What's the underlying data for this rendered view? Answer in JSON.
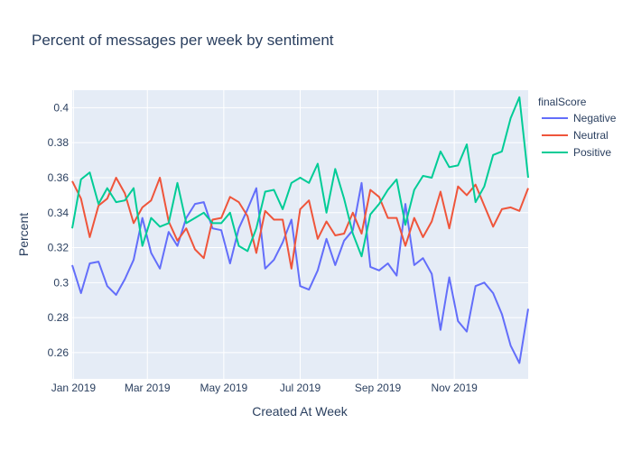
{
  "chart_data": {
    "type": "line",
    "title": "Percent of messages per week by sentiment",
    "xlabel": "Created At Week",
    "ylabel": "Percent",
    "x_ticks": [
      "Jan 2019",
      "Mar 2019",
      "May 2019",
      "Jul 2019",
      "Sep 2019",
      "Nov 2019"
    ],
    "x_tick_dates": [
      "2019-01-01",
      "2019-03-01",
      "2019-05-01",
      "2019-07-01",
      "2019-09-01",
      "2019-11-01"
    ],
    "x_range": [
      "2018-12-31",
      "2019-12-30"
    ],
    "y_ticks": [
      0.26,
      0.28,
      0.3,
      0.32,
      0.34,
      0.36,
      0.38,
      0.4
    ],
    "y_tick_labels": [
      "0.26",
      "0.28",
      "0.3",
      "0.32",
      "0.34",
      "0.36",
      "0.38",
      "0.4"
    ],
    "ylim": [
      0.245,
      0.41
    ],
    "legend_title": "finalScore",
    "legend_position": "right",
    "x": [
      "2018-12-31",
      "2019-01-07",
      "2019-01-14",
      "2019-01-21",
      "2019-01-28",
      "2019-02-04",
      "2019-02-11",
      "2019-02-18",
      "2019-02-25",
      "2019-03-04",
      "2019-03-11",
      "2019-03-18",
      "2019-03-25",
      "2019-04-01",
      "2019-04-08",
      "2019-04-15",
      "2019-04-22",
      "2019-04-29",
      "2019-05-06",
      "2019-05-13",
      "2019-05-20",
      "2019-05-27",
      "2019-06-03",
      "2019-06-10",
      "2019-06-17",
      "2019-06-24",
      "2019-07-01",
      "2019-07-08",
      "2019-07-15",
      "2019-07-22",
      "2019-07-29",
      "2019-08-05",
      "2019-08-12",
      "2019-08-19",
      "2019-08-26",
      "2019-09-02",
      "2019-09-09",
      "2019-09-16",
      "2019-09-23",
      "2019-09-30",
      "2019-10-07",
      "2019-10-14",
      "2019-10-21",
      "2019-10-28",
      "2019-11-04",
      "2019-11-11",
      "2019-11-18",
      "2019-11-25",
      "2019-12-02",
      "2019-12-09",
      "2019-12-16",
      "2019-12-23",
      "2019-12-30"
    ],
    "series": [
      {
        "name": "Negative",
        "color": "#636efa",
        "values": [
          0.31,
          0.294,
          0.311,
          0.312,
          0.298,
          0.293,
          0.302,
          0.313,
          0.337,
          0.317,
          0.308,
          0.329,
          0.321,
          0.337,
          0.345,
          0.346,
          0.331,
          0.33,
          0.311,
          0.331,
          0.342,
          0.354,
          0.308,
          0.313,
          0.323,
          0.336,
          0.298,
          0.296,
          0.307,
          0.325,
          0.31,
          0.324,
          0.33,
          0.357,
          0.309,
          0.307,
          0.311,
          0.304,
          0.345,
          0.31,
          0.314,
          0.305,
          0.273,
          0.303,
          0.278,
          0.272,
          0.298,
          0.3,
          0.294,
          0.282,
          0.264,
          0.254,
          0.285
        ]
      },
      {
        "name": "Neutral",
        "color": "#ef553b",
        "values": [
          0.358,
          0.348,
          0.326,
          0.344,
          0.348,
          0.36,
          0.351,
          0.334,
          0.343,
          0.347,
          0.36,
          0.335,
          0.324,
          0.331,
          0.319,
          0.314,
          0.336,
          0.337,
          0.349,
          0.346,
          0.338,
          0.317,
          0.341,
          0.336,
          0.336,
          0.308,
          0.342,
          0.347,
          0.325,
          0.335,
          0.327,
          0.328,
          0.34,
          0.328,
          0.353,
          0.349,
          0.337,
          0.337,
          0.321,
          0.337,
          0.326,
          0.335,
          0.352,
          0.331,
          0.355,
          0.35,
          0.356,
          0.344,
          0.332,
          0.342,
          0.343,
          0.341,
          0.354
        ]
      },
      {
        "name": "Positive",
        "color": "#00cc96",
        "values": [
          0.331,
          0.359,
          0.363,
          0.345,
          0.354,
          0.346,
          0.347,
          0.354,
          0.321,
          0.337,
          0.332,
          0.334,
          0.357,
          0.334,
          0.337,
          0.34,
          0.334,
          0.334,
          0.34,
          0.321,
          0.318,
          0.331,
          0.352,
          0.353,
          0.342,
          0.357,
          0.36,
          0.357,
          0.368,
          0.34,
          0.365,
          0.348,
          0.328,
          0.315,
          0.339,
          0.345,
          0.353,
          0.359,
          0.333,
          0.353,
          0.361,
          0.36,
          0.375,
          0.366,
          0.367,
          0.379,
          0.346,
          0.355,
          0.373,
          0.375,
          0.394,
          0.406,
          0.36
        ]
      }
    ]
  }
}
